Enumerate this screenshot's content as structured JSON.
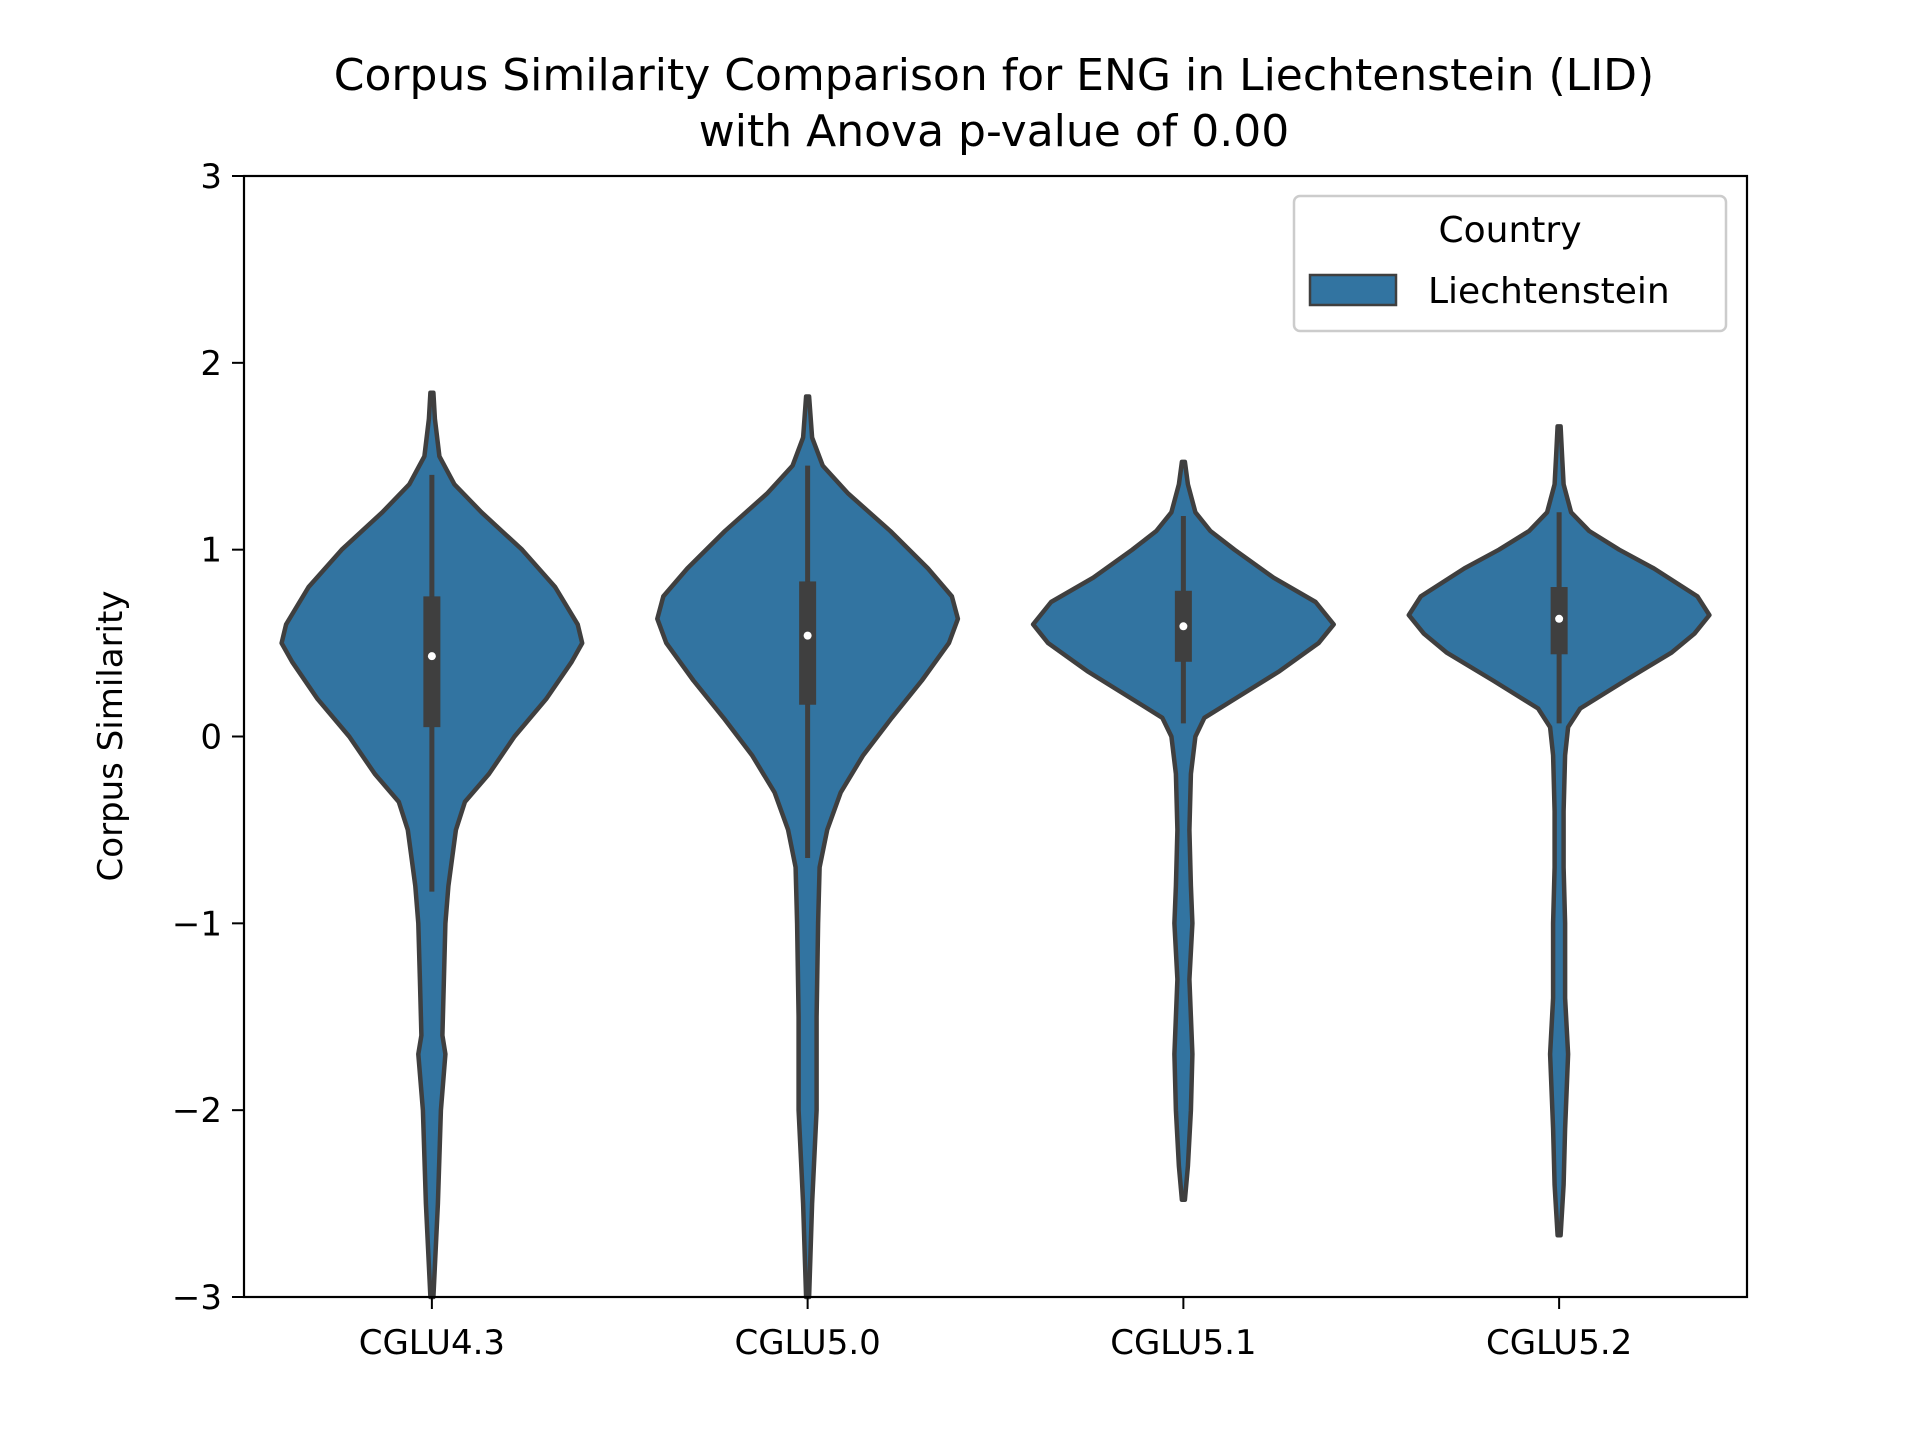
{
  "chart_data": {
    "type": "violin",
    "title_line1": "Corpus Similarity Comparison for ENG in Liechtenstein (LID)",
    "title_line2": "with Anova p-value of 0.00",
    "xlabel": "",
    "ylabel": "Corpus Similarity",
    "ylim": [
      -3,
      3
    ],
    "yticks": [
      -3,
      -2,
      -1,
      0,
      1,
      2,
      3
    ],
    "ytick_labels": [
      "−3",
      "−2",
      "−1",
      "0",
      "1",
      "2",
      "3"
    ],
    "categories": [
      "CGLU4.3",
      "CGLU5.0",
      "CGLU5.1",
      "CGLU5.2"
    ],
    "legend": {
      "title": "Country",
      "entries": [
        "Liechtenstein"
      ],
      "placement": "top-right"
    },
    "grid": false,
    "fill_color": "#3274a1",
    "edge_color": "#3f3f3f",
    "violins": [
      {
        "category": "CGLU4.3",
        "min": -3.0,
        "max": 1.84,
        "q1": 0.05,
        "median": 0.43,
        "q3": 0.75,
        "whisker_low": -0.83,
        "whisker_high": 1.4,
        "profile": [
          [
            -3.0,
            0.01
          ],
          [
            -2.5,
            0.04
          ],
          [
            -2.0,
            0.06
          ],
          [
            -1.7,
            0.09
          ],
          [
            -1.6,
            0.07
          ],
          [
            -1.3,
            0.08
          ],
          [
            -1.0,
            0.09
          ],
          [
            -0.8,
            0.11
          ],
          [
            -0.5,
            0.16
          ],
          [
            -0.35,
            0.22
          ],
          [
            -0.2,
            0.38
          ],
          [
            0.0,
            0.55
          ],
          [
            0.2,
            0.76
          ],
          [
            0.4,
            0.93
          ],
          [
            0.5,
            1.0
          ],
          [
            0.6,
            0.97
          ],
          [
            0.8,
            0.82
          ],
          [
            1.0,
            0.6
          ],
          [
            1.2,
            0.33
          ],
          [
            1.35,
            0.15
          ],
          [
            1.5,
            0.05
          ],
          [
            1.7,
            0.02
          ],
          [
            1.84,
            0.01
          ]
        ]
      },
      {
        "category": "CGLU5.0",
        "min": -3.0,
        "max": 1.82,
        "q1": 0.17,
        "median": 0.54,
        "q3": 0.83,
        "whisker_low": -0.65,
        "whisker_high": 1.45,
        "profile": [
          [
            -3.0,
            0.01
          ],
          [
            -2.5,
            0.03
          ],
          [
            -2.0,
            0.06
          ],
          [
            -1.5,
            0.06
          ],
          [
            -1.0,
            0.07
          ],
          [
            -0.7,
            0.08
          ],
          [
            -0.5,
            0.13
          ],
          [
            -0.3,
            0.22
          ],
          [
            -0.1,
            0.37
          ],
          [
            0.1,
            0.56
          ],
          [
            0.3,
            0.76
          ],
          [
            0.5,
            0.94
          ],
          [
            0.63,
            1.0
          ],
          [
            0.75,
            0.96
          ],
          [
            0.9,
            0.8
          ],
          [
            1.1,
            0.55
          ],
          [
            1.3,
            0.27
          ],
          [
            1.45,
            0.1
          ],
          [
            1.6,
            0.03
          ],
          [
            1.82,
            0.01
          ]
        ]
      },
      {
        "category": "CGLU5.1",
        "min": -2.48,
        "max": 1.47,
        "q1": 0.4,
        "median": 0.59,
        "q3": 0.78,
        "whisker_low": 0.07,
        "whisker_high": 1.18,
        "profile": [
          [
            -2.48,
            0.01
          ],
          [
            -2.3,
            0.03
          ],
          [
            -2.0,
            0.05
          ],
          [
            -1.7,
            0.06
          ],
          [
            -1.3,
            0.04
          ],
          [
            -1.0,
            0.06
          ],
          [
            -0.8,
            0.05
          ],
          [
            -0.5,
            0.04
          ],
          [
            -0.2,
            0.05
          ],
          [
            0.0,
            0.08
          ],
          [
            0.1,
            0.14
          ],
          [
            0.2,
            0.34
          ],
          [
            0.35,
            0.64
          ],
          [
            0.5,
            0.9
          ],
          [
            0.6,
            1.0
          ],
          [
            0.72,
            0.88
          ],
          [
            0.85,
            0.6
          ],
          [
            1.0,
            0.34
          ],
          [
            1.1,
            0.18
          ],
          [
            1.2,
            0.08
          ],
          [
            1.35,
            0.03
          ],
          [
            1.47,
            0.01
          ]
        ]
      },
      {
        "category": "CGLU5.2",
        "min": -2.67,
        "max": 1.66,
        "q1": 0.44,
        "median": 0.63,
        "q3": 0.8,
        "whisker_low": 0.07,
        "whisker_high": 1.2,
        "profile": [
          [
            -2.67,
            0.01
          ],
          [
            -2.4,
            0.03
          ],
          [
            -2.1,
            0.04
          ],
          [
            -1.7,
            0.06
          ],
          [
            -1.4,
            0.04
          ],
          [
            -1.0,
            0.04
          ],
          [
            -0.7,
            0.03
          ],
          [
            -0.4,
            0.03
          ],
          [
            -0.1,
            0.04
          ],
          [
            0.05,
            0.06
          ],
          [
            0.15,
            0.14
          ],
          [
            0.3,
            0.44
          ],
          [
            0.45,
            0.75
          ],
          [
            0.55,
            0.9
          ],
          [
            0.65,
            1.0
          ],
          [
            0.75,
            0.92
          ],
          [
            0.9,
            0.63
          ],
          [
            1.0,
            0.4
          ],
          [
            1.1,
            0.2
          ],
          [
            1.2,
            0.08
          ],
          [
            1.35,
            0.03
          ],
          [
            1.5,
            0.02
          ],
          [
            1.66,
            0.01
          ]
        ]
      }
    ]
  }
}
